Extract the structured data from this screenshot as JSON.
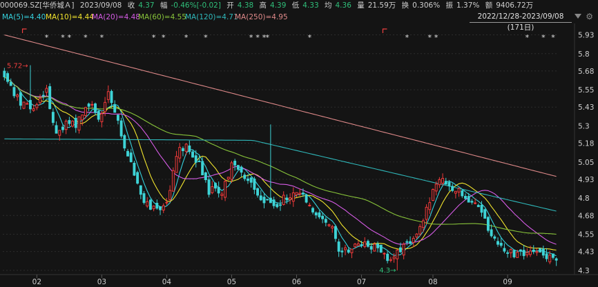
{
  "header": {
    "stock": "000069.SZ[华侨城Ａ]",
    "date": "2023/09/08",
    "close_label": "收",
    "close": "4.37",
    "change_label": "幅",
    "change": "-0.46%[-0.02]",
    "open_label": "开",
    "open": "4.38",
    "high_label": "高",
    "high": "4.39",
    "low_label": "低",
    "low": "4.33",
    "avg_label": "均",
    "avg": "4.36",
    "vol_label": "量",
    "vol": "21.59万",
    "turnover_label": "换",
    "turnover": "0.306%",
    "amp_label": "振",
    "amp": "1.37%",
    "amount_label": "额",
    "amount": "9406.72万"
  },
  "ma_legend": [
    {
      "text": "MA(5)=4.40",
      "color": "#35d0dc"
    },
    {
      "text": "MA(10)=4.44",
      "color": "#f2e52e"
    },
    {
      "text": "MA(20)=4.48",
      "color": "#d65ce6"
    },
    {
      "text": "MA(60)=4.55",
      "color": "#88c43a"
    },
    {
      "text": "MA(120)=4.71",
      "color": "#2fb9bb"
    },
    {
      "text": "MA(250)=4.95",
      "color": "#e08a8a"
    }
  ],
  "range_label": "2022/12/28-2023/09/08 (171日)",
  "colors": {
    "up": "#f23a3a",
    "down": "#3ed3d6",
    "bg": "#141414",
    "grid": "#2c2c2c"
  },
  "markers": {
    "high_label": "5.72",
    "low_label": "4.3",
    "star": "*"
  },
  "chart_data": {
    "type": "candlestick",
    "ylim": [
      4.28,
      5.99
    ],
    "y_ticks": [
      "5.93",
      "5.8",
      "5.68",
      "5.55",
      "5.43",
      "5.3",
      "5.18",
      "5.05",
      "4.93",
      "4.8",
      "4.68",
      "4.55",
      "4.43",
      "4.3"
    ],
    "x_ticks": [
      "02",
      "03",
      "04",
      "05",
      "06",
      "07",
      "08",
      "09"
    ],
    "anchors": [
      [
        0,
        5.62
      ],
      [
        5,
        5.45
      ],
      [
        9,
        5.4
      ],
      [
        13,
        5.55
      ],
      [
        16,
        5.25
      ],
      [
        18,
        5.3
      ],
      [
        22,
        5.3
      ],
      [
        26,
        5.45
      ],
      [
        29,
        5.35
      ],
      [
        32,
        5.55
      ],
      [
        36,
        5.25
      ],
      [
        40,
        4.95
      ],
      [
        44,
        4.75
      ],
      [
        48,
        4.72
      ],
      [
        50,
        4.78
      ],
      [
        53,
        5.1
      ],
      [
        56,
        5.15
      ],
      [
        60,
        5.05
      ],
      [
        63,
        4.85
      ],
      [
        67,
        4.85
      ],
      [
        70,
        5.02
      ],
      [
        73,
        4.95
      ],
      [
        76,
        4.9
      ],
      [
        80,
        4.78
      ],
      [
        83,
        4.75
      ],
      [
        86,
        4.8
      ],
      [
        90,
        4.85
      ],
      [
        94,
        4.75
      ],
      [
        98,
        4.65
      ],
      [
        101,
        4.6
      ],
      [
        103,
        4.45
      ],
      [
        107,
        4.45
      ],
      [
        111,
        4.5
      ],
      [
        115,
        4.45
      ],
      [
        118,
        4.35
      ],
      [
        121,
        4.45
      ],
      [
        125,
        4.5
      ],
      [
        128,
        4.6
      ],
      [
        131,
        4.8
      ],
      [
        134,
        4.92
      ],
      [
        138,
        4.88
      ],
      [
        141,
        4.85
      ],
      [
        144,
        4.75
      ],
      [
        147,
        4.7
      ],
      [
        150,
        4.55
      ],
      [
        153,
        4.45
      ],
      [
        156,
        4.42
      ],
      [
        160,
        4.4
      ],
      [
        163,
        4.45
      ],
      [
        166,
        4.42
      ],
      [
        170,
        4.37
      ]
    ],
    "ma_final": {
      "MA5": 4.4,
      "MA10": 4.44,
      "MA20": 4.48,
      "MA60": 4.55,
      "MA120": 4.71,
      "MA250": 4.95
    },
    "last_close": 4.37,
    "period_high": 5.72,
    "period_low": 4.3,
    "days": 171
  }
}
